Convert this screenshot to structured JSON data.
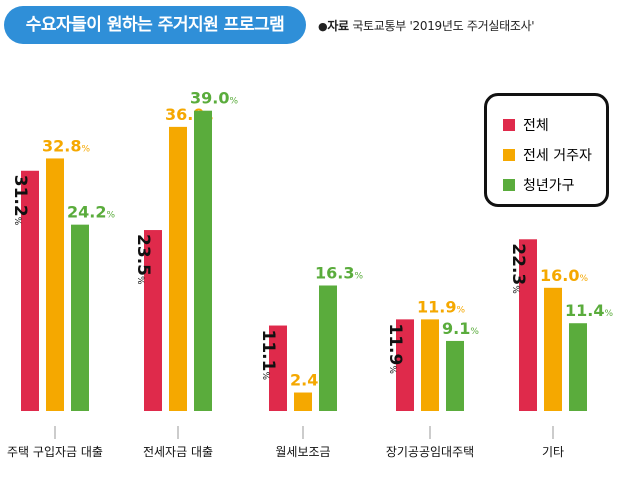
{
  "header": {
    "title": "수요자들이 원하는 주거지원 프로그램",
    "source_dot": "●",
    "source_label": "자료",
    "source_text": "국토교통부 '2019년도 주거실태조사'"
  },
  "colors": {
    "title_bg": "#2f8fd8",
    "series": [
      "#df2a4b",
      "#f5a800",
      "#5aac3c"
    ],
    "axis": "#999999"
  },
  "chart_data": {
    "type": "bar",
    "categories": [
      "주택 구입자금 대출",
      "전세자금 대출",
      "월세보조금",
      "장기공공임대주택",
      "기타"
    ],
    "series": [
      {
        "name": "전체",
        "values": [
          31.2,
          23.5,
          11.1,
          11.9,
          22.3
        ]
      },
      {
        "name": "전세 거주자",
        "values": [
          32.8,
          36.9,
          2.4,
          11.9,
          16.0
        ]
      },
      {
        "name": "청년가구",
        "values": [
          24.2,
          39.0,
          16.3,
          9.1,
          11.4
        ]
      }
    ],
    "unit": "%",
    "legend_position": "top-right"
  }
}
